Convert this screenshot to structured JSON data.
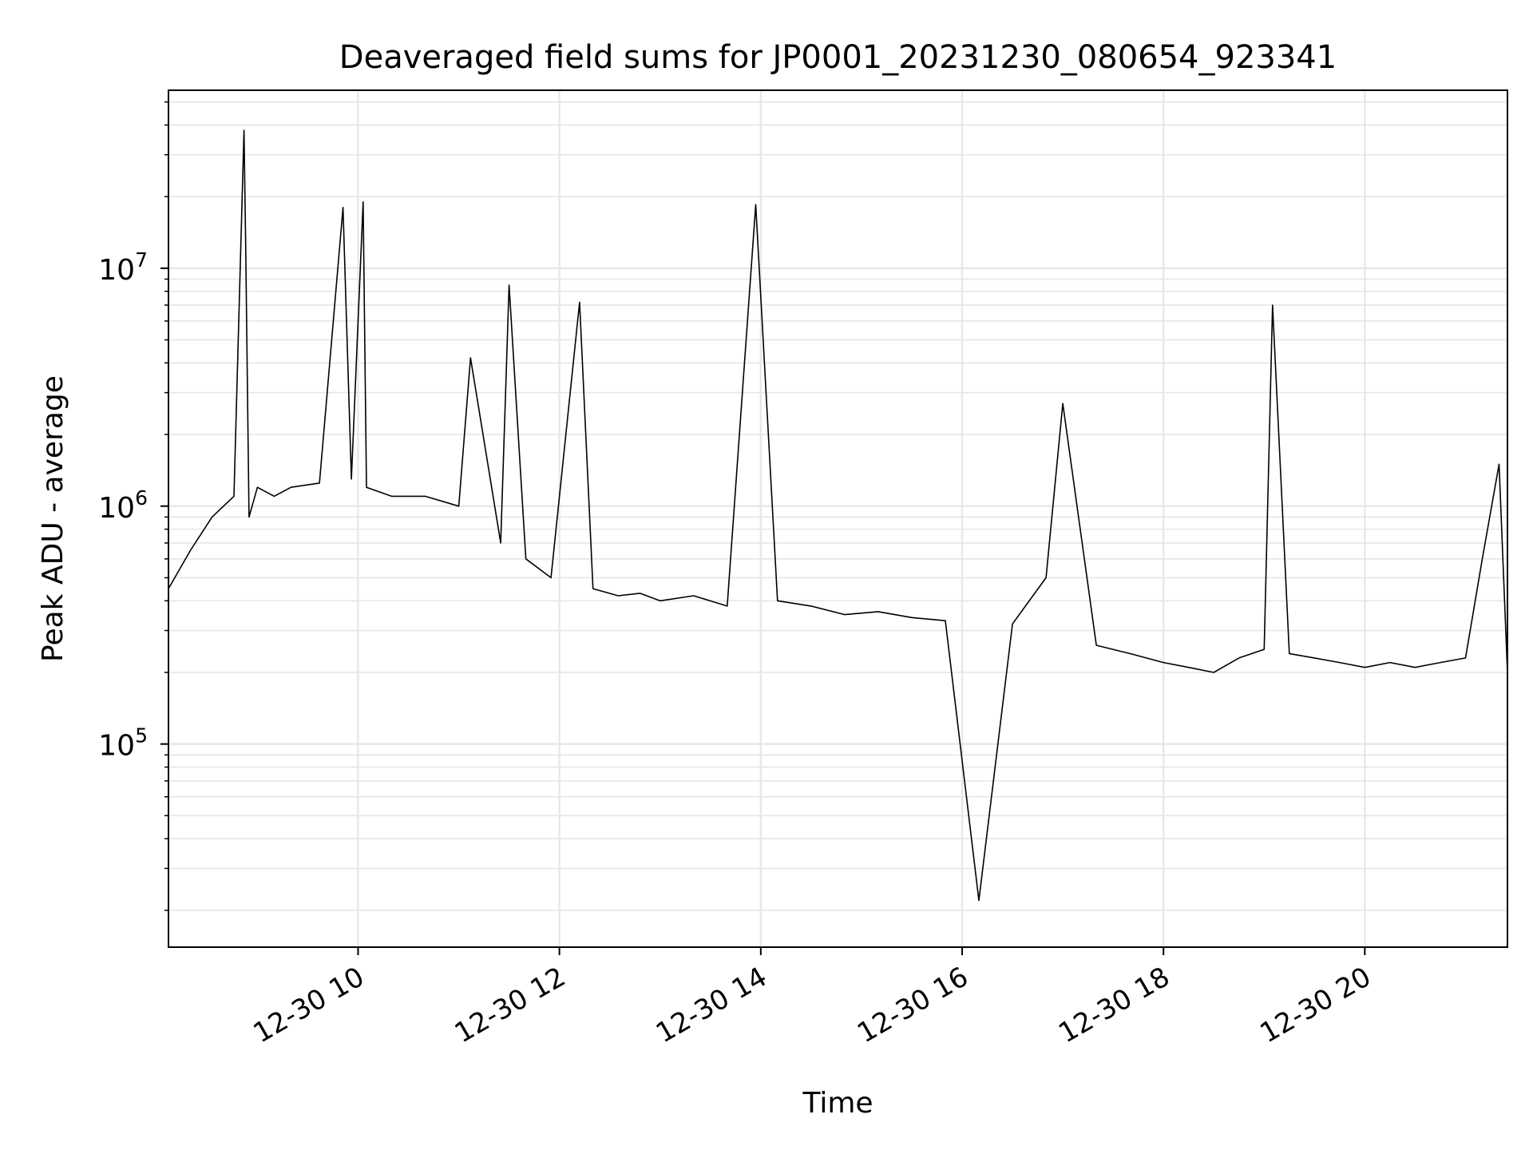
{
  "chart_data": {
    "type": "line",
    "title": "Deaveraged field sums for JP0001_20231230_080654_923341",
    "xlabel": "Time",
    "ylabel": "Peak ADU - average",
    "yscale": "log",
    "ylim": [
      14000,
      56000000
    ],
    "xlim": [
      "2023-12-30 08:07",
      "2023-12-30 21:25"
    ],
    "grid": true,
    "line_color": "#000000",
    "grid_color": "#e6e6e6",
    "x_ticks": [
      {
        "value": "2023-12-30 10:00",
        "label": "12-30 10"
      },
      {
        "value": "2023-12-30 12:00",
        "label": "12-30 12"
      },
      {
        "value": "2023-12-30 14:00",
        "label": "12-30 14"
      },
      {
        "value": "2023-12-30 16:00",
        "label": "12-30 16"
      },
      {
        "value": "2023-12-30 18:00",
        "label": "12-30 18"
      },
      {
        "value": "2023-12-30 20:00",
        "label": "12-30 20"
      }
    ],
    "y_ticks": [
      {
        "value": 100000,
        "base": "10",
        "exp": "5"
      },
      {
        "value": 1000000,
        "base": "10",
        "exp": "6"
      },
      {
        "value": 10000000,
        "base": "10",
        "exp": "7"
      }
    ],
    "series": [
      {
        "x": [
          "2023-12-30 08:07",
          "2023-12-30 08:20",
          "2023-12-30 08:33",
          "2023-12-30 08:46",
          "2023-12-30 08:52",
          "2023-12-30 08:53",
          "2023-12-30 08:55",
          "2023-12-30 09:00",
          "2023-12-30 09:10",
          "2023-12-30 09:20",
          "2023-12-30 09:37",
          "2023-12-30 09:51",
          "2023-12-30 09:56",
          "2023-12-30 10:03",
          "2023-12-30 10:05",
          "2023-12-30 10:20",
          "2023-12-30 10:40",
          "2023-12-30 11:00",
          "2023-12-30 11:07",
          "2023-12-30 11:25",
          "2023-12-30 11:30",
          "2023-12-30 11:40",
          "2023-12-30 11:55",
          "2023-12-30 12:12",
          "2023-12-30 12:20",
          "2023-12-30 12:35",
          "2023-12-30 12:48",
          "2023-12-30 13:00",
          "2023-12-30 13:20",
          "2023-12-30 13:40",
          "2023-12-30 13:57",
          "2023-12-30 14:10",
          "2023-12-30 14:30",
          "2023-12-30 14:50",
          "2023-12-30 15:10",
          "2023-12-30 15:30",
          "2023-12-30 15:50",
          "2023-12-30 16:10",
          "2023-12-30 16:30",
          "2023-12-30 16:50",
          "2023-12-30 17:00",
          "2023-12-30 17:20",
          "2023-12-30 17:40",
          "2023-12-30 18:00",
          "2023-12-30 18:15",
          "2023-12-30 18:30",
          "2023-12-30 18:45",
          "2023-12-30 19:00",
          "2023-12-30 19:05",
          "2023-12-30 19:15",
          "2023-12-30 19:30",
          "2023-12-30 19:45",
          "2023-12-30 20:00",
          "2023-12-30 20:15",
          "2023-12-30 20:30",
          "2023-12-30 20:45",
          "2023-12-30 21:00",
          "2023-12-30 21:10",
          "2023-12-30 21:20",
          "2023-12-30 21:25"
        ],
        "y": [
          450000,
          650000,
          900000,
          1100000,
          38000000,
          12500000,
          900000,
          1200000,
          1100000,
          1200000,
          1250000,
          18000000,
          1300000,
          19000000,
          1200000,
          1100000,
          1100000,
          1000000,
          4200000,
          700000,
          8500000,
          600000,
          500000,
          7200000,
          450000,
          420000,
          430000,
          400000,
          420000,
          380000,
          18500000,
          400000,
          380000,
          350000,
          360000,
          340000,
          330000,
          22000,
          320000,
          500000,
          2700000,
          260000,
          240000,
          220000,
          210000,
          200000,
          230000,
          250000,
          7000000,
          240000,
          230000,
          220000,
          210000,
          220000,
          210000,
          220000,
          230000,
          600000,
          1500000,
          200000
        ]
      }
    ]
  }
}
